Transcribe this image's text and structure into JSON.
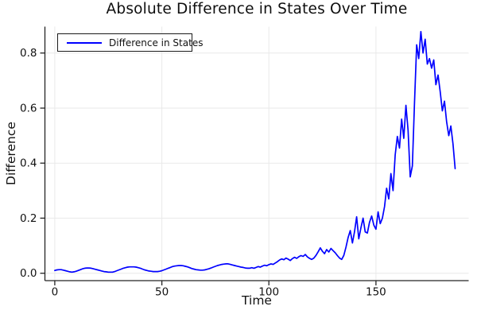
{
  "figure": {
    "background": "#ffffff"
  },
  "chart_data": {
    "type": "line",
    "title": "Absolute Difference in States Over Time",
    "xlabel": "Time",
    "ylabel": "Difference",
    "legend": {
      "position": "top-left",
      "entries": [
        {
          "label": "Difference in States",
          "color": "#0000ff"
        }
      ]
    },
    "xlim": [
      -4.6,
      193.3
    ],
    "ylim": [
      -0.027,
      0.896
    ],
    "xticks": [
      0,
      50,
      100,
      150
    ],
    "xtick_labels": [
      "0",
      "50",
      "100",
      "150"
    ],
    "yticks": [
      0.0,
      0.2,
      0.4,
      0.6,
      0.8
    ],
    "ytick_labels": [
      "0.0",
      "0.2",
      "0.4",
      "0.6",
      "0.8"
    ],
    "grid": true,
    "colors": {
      "line": "#0000ff",
      "grid": "#e9e9e9",
      "axis": "#242424",
      "text": "#111111"
    },
    "series": [
      {
        "name": "Difference in States",
        "color": "#0000ff",
        "x_start": 0,
        "x_step": 1,
        "y": [
          0.01,
          0.012,
          0.013,
          0.013,
          0.011,
          0.009,
          0.007,
          0.005,
          0.004,
          0.005,
          0.007,
          0.01,
          0.013,
          0.016,
          0.018,
          0.019,
          0.019,
          0.018,
          0.016,
          0.014,
          0.012,
          0.01,
          0.008,
          0.006,
          0.005,
          0.004,
          0.004,
          0.004,
          0.006,
          0.009,
          0.012,
          0.015,
          0.018,
          0.02,
          0.022,
          0.023,
          0.023,
          0.023,
          0.022,
          0.02,
          0.018,
          0.015,
          0.012,
          0.01,
          0.008,
          0.007,
          0.006,
          0.006,
          0.006,
          0.007,
          0.009,
          0.012,
          0.015,
          0.018,
          0.021,
          0.024,
          0.026,
          0.027,
          0.028,
          0.028,
          0.027,
          0.025,
          0.023,
          0.02,
          0.017,
          0.015,
          0.013,
          0.012,
          0.011,
          0.011,
          0.012,
          0.014,
          0.016,
          0.019,
          0.022,
          0.025,
          0.028,
          0.03,
          0.032,
          0.033,
          0.034,
          0.034,
          0.032,
          0.03,
          0.028,
          0.026,
          0.024,
          0.022,
          0.021,
          0.019,
          0.018,
          0.018,
          0.02,
          0.018,
          0.021,
          0.024,
          0.022,
          0.026,
          0.029,
          0.027,
          0.031,
          0.034,
          0.032,
          0.037,
          0.042,
          0.048,
          0.052,
          0.049,
          0.055,
          0.051,
          0.046,
          0.053,
          0.058,
          0.054,
          0.06,
          0.064,
          0.061,
          0.068,
          0.059,
          0.054,
          0.05,
          0.055,
          0.065,
          0.078,
          0.092,
          0.08,
          0.071,
          0.086,
          0.077,
          0.09,
          0.082,
          0.074,
          0.064,
          0.055,
          0.05,
          0.065,
          0.095,
          0.13,
          0.155,
          0.11,
          0.15,
          0.205,
          0.125,
          0.165,
          0.2,
          0.15,
          0.146,
          0.185,
          0.208,
          0.175,
          0.16,
          0.223,
          0.18,
          0.2,
          0.242,
          0.309,
          0.27,
          0.362,
          0.3,
          0.43,
          0.497,
          0.455,
          0.56,
          0.49,
          0.61,
          0.52,
          0.35,
          0.39,
          0.62,
          0.83,
          0.78,
          0.878,
          0.8,
          0.85,
          0.76,
          0.78,
          0.745,
          0.775,
          0.685,
          0.72,
          0.66,
          0.59,
          0.625,
          0.55,
          0.5,
          0.535,
          0.47,
          0.38
        ]
      }
    ]
  }
}
